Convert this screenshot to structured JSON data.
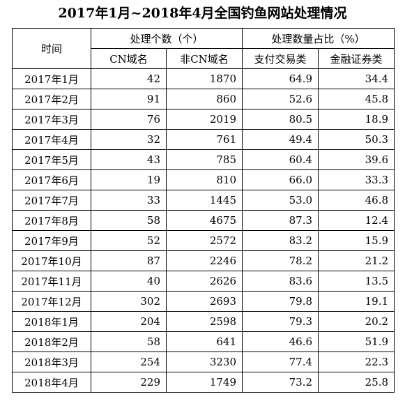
{
  "title": "2017年1月~2018年4月全国钓鱼网站处理情况",
  "table": {
    "col_time": "时间",
    "group_count": "处理个数（个）",
    "group_ratio": "处理数量占比（%）",
    "sub_cn": "CN域名",
    "sub_non_cn": "非CN域名",
    "sub_payment": "支付交易类",
    "sub_finance": "金融证券类",
    "rows": [
      {
        "month": "2017年1月",
        "cn": "42",
        "non_cn": "1870",
        "payment": "64.9",
        "finance": "34.4"
      },
      {
        "month": "2017年2月",
        "cn": "91",
        "non_cn": "860",
        "payment": "52.6",
        "finance": "45.8"
      },
      {
        "month": "2017年3月",
        "cn": "76",
        "non_cn": "2019",
        "payment": "80.5",
        "finance": "18.9"
      },
      {
        "month": "2017年4月",
        "cn": "32",
        "non_cn": "761",
        "payment": "49.4",
        "finance": "50.3"
      },
      {
        "month": "2017年5月",
        "cn": "43",
        "non_cn": "785",
        "payment": "60.4",
        "finance": "39.6"
      },
      {
        "month": "2017年6月",
        "cn": "19",
        "non_cn": "810",
        "payment": "66.0",
        "finance": "33.3"
      },
      {
        "month": "2017年7月",
        "cn": "33",
        "non_cn": "1445",
        "payment": "53.0",
        "finance": "46.8"
      },
      {
        "month": "2017年8月",
        "cn": "58",
        "non_cn": "4675",
        "payment": "87.3",
        "finance": "12.4"
      },
      {
        "month": "2017年9月",
        "cn": "52",
        "non_cn": "2572",
        "payment": "83.2",
        "finance": "15.9"
      },
      {
        "month": "2017年10月",
        "cn": "87",
        "non_cn": "2246",
        "payment": "78.2",
        "finance": "21.2"
      },
      {
        "month": "2017年11月",
        "cn": "40",
        "non_cn": "2626",
        "payment": "83.6",
        "finance": "13.5"
      },
      {
        "month": "2017年12月",
        "cn": "302",
        "non_cn": "2693",
        "payment": "79.8",
        "finance": "19.1"
      },
      {
        "month": "2018年1月",
        "cn": "204",
        "non_cn": "2598",
        "payment": "79.3",
        "finance": "20.2"
      },
      {
        "month": "2018年2月",
        "cn": "58",
        "non_cn": "641",
        "payment": "46.6",
        "finance": "51.9"
      },
      {
        "month": "2018年3月",
        "cn": "254",
        "non_cn": "3230",
        "payment": "77.4",
        "finance": "22.3"
      },
      {
        "month": "2018年4月",
        "cn": "229",
        "non_cn": "1749",
        "payment": "73.2",
        "finance": "25.8"
      }
    ]
  }
}
